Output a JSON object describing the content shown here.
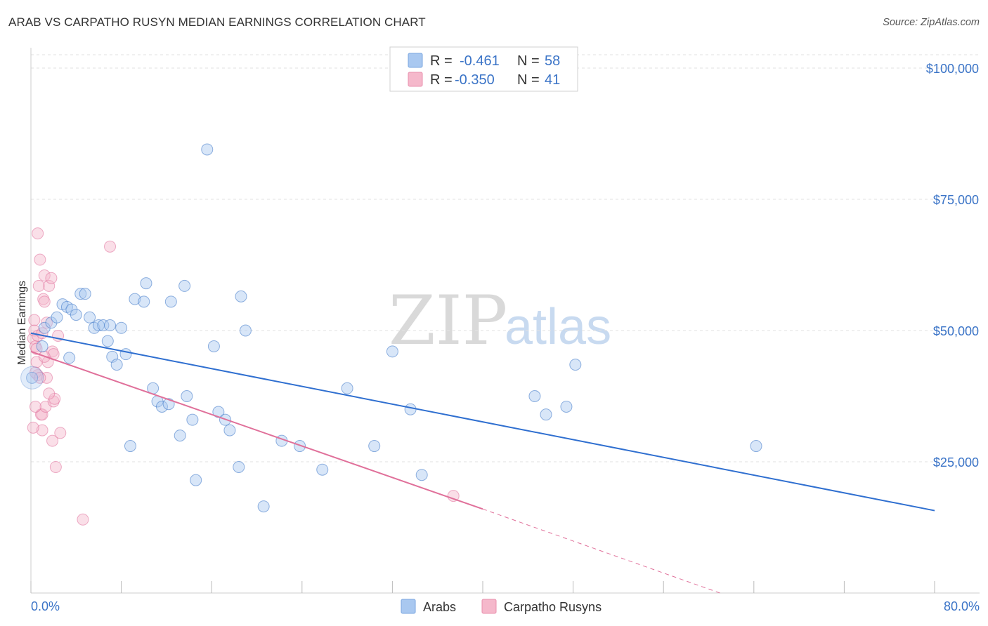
{
  "header": {
    "title": "ARAB VS CARPATHO RUSYN MEDIAN EARNINGS CORRELATION CHART",
    "source": "Source: ZipAtlas.com"
  },
  "watermark": {
    "zip": "ZIP",
    "atlas": "atlas"
  },
  "legend": {
    "rows": [
      {
        "r_label": "R =",
        "r_value": "-0.461",
        "n_label": "N =",
        "n_value": "58",
        "color": "#a9c8f0"
      },
      {
        "r_label": "R =",
        "r_value": "-0.350",
        "n_label": "N =",
        "n_value": "41",
        "color": "#f5b8cb"
      }
    ]
  },
  "bottom_legend": [
    {
      "label": "Arabs",
      "color": "#a9c8f0"
    },
    {
      "label": "Carpatho Rusyns",
      "color": "#f5b8cb"
    }
  ],
  "chart_data": {
    "type": "scatter",
    "xlabel": "",
    "ylabel": "Median Earnings",
    "xlim": [
      0,
      80
    ],
    "ylim": [
      0,
      105000
    ],
    "x_tick_labels": {
      "left": "0.0%",
      "right": "80.0%"
    },
    "y_ticks": [
      {
        "value": 25000,
        "label": "$25,000"
      },
      {
        "value": 50000,
        "label": "$50,000"
      },
      {
        "value": 75000,
        "label": "$75,000"
      },
      {
        "value": 100000,
        "label": "$100,000"
      }
    ],
    "grid": true,
    "series": [
      {
        "name": "Arabs",
        "color": "#a9c8f0",
        "stroke": "#3b74c7",
        "trend": {
          "x": [
            0,
            80
          ],
          "y": [
            49500,
            15700
          ]
        },
        "points": [
          [
            0.1,
            41000
          ],
          [
            1.2,
            50500
          ],
          [
            1.8,
            51500
          ],
          [
            2.3,
            52500
          ],
          [
            2.8,
            55000
          ],
          [
            3.2,
            54500
          ],
          [
            3.6,
            54000
          ],
          [
            4.0,
            53000
          ],
          [
            4.4,
            57000
          ],
          [
            4.8,
            57000
          ],
          [
            5.2,
            52500
          ],
          [
            5.6,
            50500
          ],
          [
            6.0,
            51000
          ],
          [
            6.4,
            51000
          ],
          [
            6.8,
            48000
          ],
          [
            7.2,
            45000
          ],
          [
            7.6,
            43500
          ],
          [
            8.0,
            50500
          ],
          [
            8.4,
            45500
          ],
          [
            8.8,
            28000
          ],
          [
            9.2,
            56000
          ],
          [
            10.0,
            55500
          ],
          [
            10.2,
            59000
          ],
          [
            10.8,
            39000
          ],
          [
            11.2,
            36500
          ],
          [
            11.6,
            35500
          ],
          [
            12.2,
            36000
          ],
          [
            12.4,
            55500
          ],
          [
            13.2,
            30000
          ],
          [
            13.6,
            58500
          ],
          [
            13.8,
            37500
          ],
          [
            14.3,
            33000
          ],
          [
            14.6,
            21500
          ],
          [
            15.6,
            84500
          ],
          [
            16.2,
            47000
          ],
          [
            16.6,
            34500
          ],
          [
            17.2,
            33000
          ],
          [
            17.6,
            31000
          ],
          [
            18.4,
            24000
          ],
          [
            18.6,
            56500
          ],
          [
            19.0,
            50000
          ],
          [
            20.6,
            16500
          ],
          [
            22.2,
            29000
          ],
          [
            23.8,
            28000
          ],
          [
            25.8,
            23500
          ],
          [
            28.0,
            39000
          ],
          [
            30.4,
            28000
          ],
          [
            32.0,
            46000
          ],
          [
            33.6,
            35000
          ],
          [
            34.6,
            22500
          ],
          [
            44.6,
            37500
          ],
          [
            45.6,
            34000
          ],
          [
            47.4,
            35500
          ],
          [
            48.2,
            43500
          ],
          [
            64.2,
            28000
          ],
          [
            1.0,
            47000
          ],
          [
            3.4,
            44800
          ],
          [
            7.0,
            51000
          ]
        ]
      },
      {
        "name": "Carpatho Rusyns",
        "color": "#f5b8cb",
        "stroke": "#e0709a",
        "trend": {
          "x": [
            0,
            40
          ],
          "y": [
            46000,
            16000
          ]
        },
        "trend_dashed": {
          "x": [
            40,
            61
          ],
          "y": [
            16000,
            0
          ]
        },
        "points": [
          [
            0.2,
            48500
          ],
          [
            0.3,
            50000
          ],
          [
            0.4,
            47000
          ],
          [
            0.5,
            46500
          ],
          [
            0.5,
            44000
          ],
          [
            0.6,
            49000
          ],
          [
            0.6,
            41500
          ],
          [
            0.7,
            58500
          ],
          [
            0.8,
            63500
          ],
          [
            0.6,
            68500
          ],
          [
            0.9,
            34000
          ],
          [
            1.0,
            31000
          ],
          [
            1.0,
            34000
          ],
          [
            1.1,
            56000
          ],
          [
            1.2,
            55500
          ],
          [
            1.2,
            60500
          ],
          [
            1.3,
            35500
          ],
          [
            1.4,
            51500
          ],
          [
            1.4,
            41000
          ],
          [
            1.5,
            44000
          ],
          [
            1.6,
            58500
          ],
          [
            1.8,
            60000
          ],
          [
            1.9,
            46000
          ],
          [
            1.9,
            29000
          ],
          [
            2.0,
            45500
          ],
          [
            2.0,
            36500
          ],
          [
            2.1,
            37000
          ],
          [
            2.2,
            24000
          ],
          [
            2.6,
            30500
          ],
          [
            2.4,
            49000
          ],
          [
            4.6,
            14000
          ],
          [
            7.0,
            66000
          ],
          [
            37.4,
            18500
          ],
          [
            0.2,
            31500
          ],
          [
            0.4,
            42000
          ],
          [
            0.8,
            41000
          ],
          [
            1.0,
            49500
          ],
          [
            1.2,
            45000
          ],
          [
            0.3,
            52000
          ],
          [
            1.6,
            38000
          ],
          [
            0.4,
            35500
          ]
        ]
      }
    ]
  }
}
